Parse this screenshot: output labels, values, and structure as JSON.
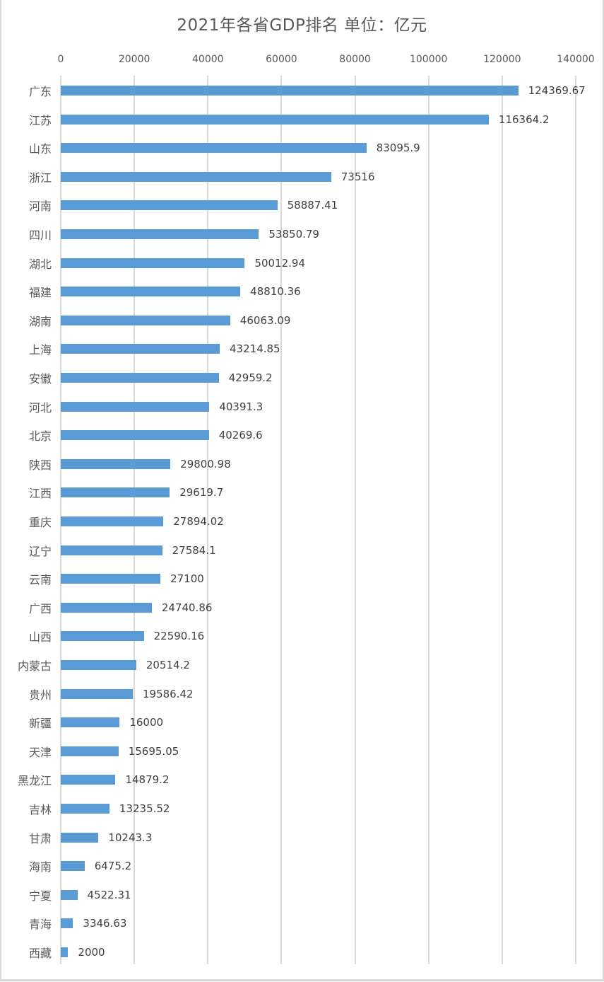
{
  "chart_data": {
    "type": "bar",
    "orientation": "horizontal",
    "title": "2021年各省GDP排名 单位：亿元",
    "xlabel": "",
    "ylabel": "",
    "xlim": [
      0,
      140000
    ],
    "x_ticks": [
      "0",
      "20000",
      "40000",
      "60000",
      "80000",
      "100000",
      "120000",
      "140000"
    ],
    "x_axis_position": "top",
    "grid": true,
    "legend": null,
    "bar_color": "#5b9bd5",
    "categories": [
      "广东",
      "江苏",
      "山东",
      "浙江",
      "河南",
      "四川",
      "湖北",
      "福建",
      "湖南",
      "上海",
      "安徽",
      "河北",
      "北京",
      "陕西",
      "江西",
      "重庆",
      "辽宁",
      "云南",
      "广西",
      "山西",
      "内蒙古",
      "贵州",
      "新疆",
      "天津",
      "黑龙江",
      "吉林",
      "甘肃",
      "海南",
      "宁夏",
      "青海",
      "西藏"
    ],
    "values": [
      124369.67,
      116364.2,
      83095.9,
      73516,
      58887.41,
      53850.79,
      50012.94,
      48810.36,
      46063.09,
      43214.85,
      42959.2,
      40391.3,
      40269.6,
      29800.98,
      29619.7,
      27894.02,
      27584.1,
      27100,
      24740.86,
      22590.16,
      20514.2,
      19586.42,
      16000,
      15695.05,
      14879.2,
      13235.52,
      10243.3,
      6475.2,
      4522.31,
      3346.63,
      2000
    ],
    "value_labels": [
      "124369.67",
      "116364.2",
      "83095.9",
      "73516",
      "58887.41",
      "53850.79",
      "50012.94",
      "48810.36",
      "46063.09",
      "43214.85",
      "42959.2",
      "40391.3",
      "40269.6",
      "29800.98",
      "29619.7",
      "27894.02",
      "27584.1",
      "27100",
      "24740.86",
      "22590.16",
      "20514.2",
      "19586.42",
      "16000",
      "15695.05",
      "14879.2",
      "13235.52",
      "10243.3",
      "6475.2",
      "4522.31",
      "3346.63",
      "2000"
    ]
  },
  "colors": {
    "bar": "#5b9bd5",
    "gridline": "#d9d9d9",
    "title_text": "#595959",
    "label_text": "#404040"
  }
}
